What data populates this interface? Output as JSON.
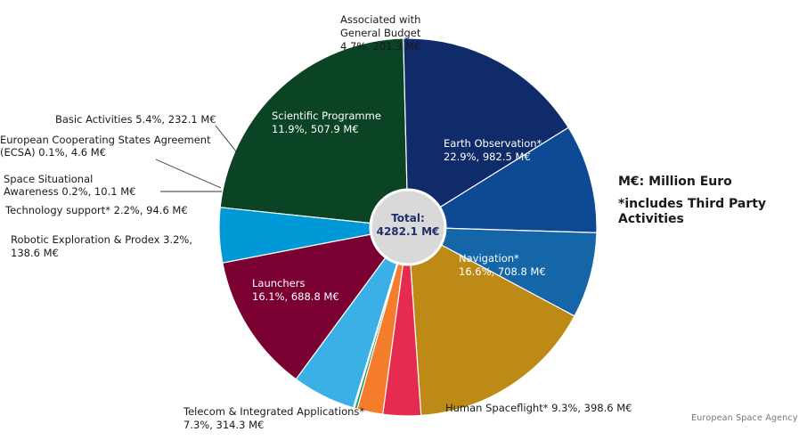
{
  "chart_data": {
    "type": "pie",
    "total_label": "Total:",
    "total_value": "4282.1 M€",
    "slices": [
      {
        "name": "Earth Observation*",
        "detail": "22.9%, 982.5 M€",
        "value": 982.5,
        "color": "#0b4424"
      },
      {
        "name": "Navigation*",
        "detail": "16.6%, 708.8 M€",
        "value": 708.8,
        "color": "#102b6a"
      },
      {
        "name": "Human Spaceflight* 9.3%, 398.6 M€",
        "detail": "",
        "value": 398.6,
        "color": "#0e4a93"
      },
      {
        "name": "Telecom & Integrated Applications*",
        "detail": "7.3%, 314.3 M€",
        "value": 314.3,
        "color": "#1466a8"
      },
      {
        "name": "Launchers",
        "detail": "16.1%, 688.8 M€",
        "value": 688.8,
        "color": "#bd8a16"
      },
      {
        "name": "Robotic Exploration & Prodex 3.2%,",
        "detail": "138.6 M€",
        "value": 138.6,
        "color": "#e52b50"
      },
      {
        "name": "Technology support* 2.2%, 94.6 M€",
        "detail": "",
        "value": 94.6,
        "color": "#f47c2a"
      },
      {
        "name": "Space Situational",
        "detail": "Awareness 0.2%, 10.1 M€",
        "value": 10.1,
        "color": "#1f8f6e"
      },
      {
        "name": "European Cooperating States Agreement",
        "detail": "(ECSA) 0.1%, 4.6 M€",
        "value": 4.6,
        "color": "#2a9bd6"
      },
      {
        "name": "Basic Activities 5.4%, 232.1 M€",
        "detail": "",
        "value": 232.1,
        "color": "#3bb0e6"
      },
      {
        "name": "Scientific Programme",
        "detail": "11.9%, 507.9 M€",
        "value": 507.9,
        "color": "#7a0031"
      },
      {
        "name": "Associated with",
        "detail": "General Budget",
        "extra": "4.7%, 201.3 M€",
        "value": 201.3,
        "color": "#0099d8"
      }
    ]
  },
  "notes": {
    "unit": "M€: Million Euro",
    "third_party": "*includes Third Party Activities"
  },
  "source": "European Space Agency"
}
